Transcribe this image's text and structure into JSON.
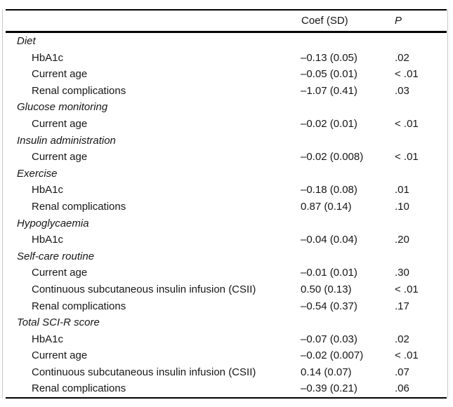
{
  "table": {
    "columns": {
      "coef": "Coef (SD)",
      "p": "P"
    },
    "rule_color": "#000000",
    "hairline_color": "#c9c9c9",
    "text_color": "#161616",
    "sections": [
      {
        "label": "Diet",
        "rows": [
          {
            "label": "HbA1c",
            "coef": "–0.13 (0.05)",
            "p": ".02"
          },
          {
            "label": "Current age",
            "coef": "–0.05 (0.01)",
            "p": "< .01"
          },
          {
            "label": "Renal complications",
            "coef": "–1.07 (0.41)",
            "p": ".03"
          }
        ]
      },
      {
        "label": "Glucose monitoring",
        "rows": [
          {
            "label": "Current age",
            "coef": "–0.02 (0.01)",
            "p": "< .01"
          }
        ]
      },
      {
        "label": "Insulin administration",
        "rows": [
          {
            "label": "Current age",
            "coef": "–0.02 (0.008)",
            "p": "< .01"
          }
        ]
      },
      {
        "label": "Exercise",
        "rows": [
          {
            "label": "HbA1c",
            "coef": "–0.18 (0.08)",
            "p": ".01"
          },
          {
            "label": "Renal complications",
            "coef": "0.87 (0.14)",
            "p": ".10"
          }
        ]
      },
      {
        "label": "Hypoglycaemia",
        "rows": [
          {
            "label": "HbA1c",
            "coef": "–0.04 (0.04)",
            "p": ".20"
          }
        ]
      },
      {
        "label": "Self-care routine",
        "rows": [
          {
            "label": "Current age",
            "coef": "–0.01 (0.01)",
            "p": ".30"
          },
          {
            "label": "Continuous subcutaneous insulin infusion (CSII)",
            "coef": "0.50 (0.13)",
            "p": "< .01"
          },
          {
            "label": "Renal complications",
            "coef": "–0.54 (0.37)",
            "p": ".17"
          }
        ]
      },
      {
        "label": "Total SCI-R score",
        "rows": [
          {
            "label": "HbA1c",
            "coef": "–0.07 (0.03)",
            "p": ".02"
          },
          {
            "label": "Current age",
            "coef": "–0.02 (0.007)",
            "p": "< .01"
          },
          {
            "label": "Continuous subcutaneous insulin infusion (CSII)",
            "coef": "0.14 (0.07)",
            "p": ".07"
          },
          {
            "label": "Renal complications",
            "coef": "–0.39 (0.21)",
            "p": ".06"
          }
        ]
      }
    ]
  }
}
